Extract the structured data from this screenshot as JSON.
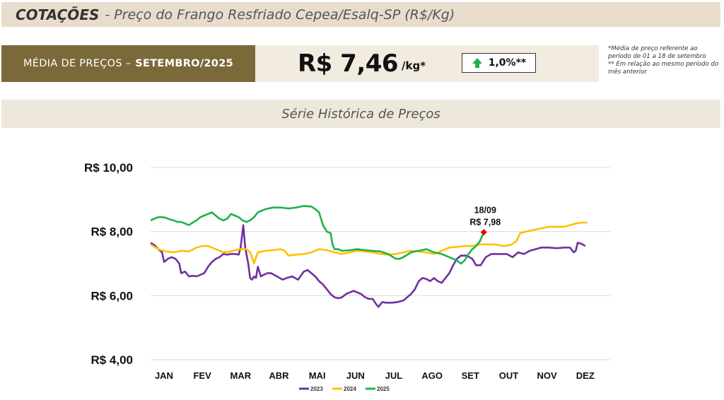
{
  "header": {
    "title_bold": "COTAÇÕES",
    "title_rest": "- Preço do Frango Resfriado Cepea/Esalq-SP (R$/Kg)"
  },
  "summary": {
    "label_prefix": "MÉDIA DE PREÇOS –",
    "label_period": "SETEMBRO/2025",
    "price": "R$ 7,46",
    "unit": "/kg*",
    "variation": "1,0%**",
    "variation_icon": "arrow-up-icon",
    "footnote_1": "*Média de preço referente ao período de 01 a 18 de setembro",
    "footnote_2": "** Em relação ao mesmo período do mês anterior"
  },
  "series_title": "Série Histórica de Preços",
  "colors": {
    "header_bg": "#e8ddcd",
    "label_bg": "#7a6a3a",
    "y2023": "#7030a0",
    "y2024": "#ffc000",
    "y2025": "#1db34a",
    "marker": "#e00000",
    "up_arrow": "#1db34a"
  },
  "chart_data": {
    "type": "line",
    "title": "Série Histórica de Preços",
    "xlabel": "",
    "ylabel": "",
    "categories": [
      "JAN",
      "FEV",
      "MAR",
      "ABR",
      "MAI",
      "JUN",
      "JUL",
      "AGO",
      "SET",
      "OUT",
      "NOV",
      "DEZ"
    ],
    "yticks": [
      "R$ 4,00",
      "R$ 6,00",
      "R$ 8,00",
      "R$ 10,00"
    ],
    "ylim": [
      4,
      10
    ],
    "xlim": [
      0,
      12
    ],
    "grid": true,
    "legend_position": "bottom",
    "series": [
      {
        "name": "2023",
        "color": "#7030a0",
        "points": [
          [
            0.0,
            7.65
          ],
          [
            0.1,
            7.58
          ],
          [
            0.2,
            7.45
          ],
          [
            0.3,
            7.35
          ],
          [
            0.35,
            7.05
          ],
          [
            0.45,
            7.15
          ],
          [
            0.55,
            7.2
          ],
          [
            0.65,
            7.15
          ],
          [
            0.75,
            7.0
          ],
          [
            0.8,
            6.7
          ],
          [
            0.9,
            6.75
          ],
          [
            1.0,
            6.6
          ],
          [
            1.1,
            6.62
          ],
          [
            1.2,
            6.6
          ],
          [
            1.3,
            6.65
          ],
          [
            1.4,
            6.7
          ],
          [
            1.5,
            6.9
          ],
          [
            1.6,
            7.05
          ],
          [
            1.7,
            7.15
          ],
          [
            1.8,
            7.2
          ],
          [
            1.9,
            7.3
          ],
          [
            2.0,
            7.28
          ],
          [
            2.1,
            7.3
          ],
          [
            2.2,
            7.3
          ],
          [
            2.3,
            7.28
          ],
          [
            2.35,
            7.5
          ],
          [
            2.42,
            8.2
          ],
          [
            2.47,
            7.5
          ],
          [
            2.55,
            7.0
          ],
          [
            2.6,
            6.55
          ],
          [
            2.65,
            6.5
          ],
          [
            2.7,
            6.6
          ],
          [
            2.75,
            6.55
          ],
          [
            2.8,
            6.9
          ],
          [
            2.88,
            6.6
          ],
          [
            2.95,
            6.65
          ],
          [
            3.05,
            6.7
          ],
          [
            3.15,
            6.7
          ],
          [
            3.3,
            6.6
          ],
          [
            3.45,
            6.5
          ],
          [
            3.55,
            6.55
          ],
          [
            3.7,
            6.6
          ],
          [
            3.85,
            6.5
          ],
          [
            4.0,
            6.75
          ],
          [
            4.1,
            6.8
          ],
          [
            4.2,
            6.7
          ],
          [
            4.3,
            6.6
          ],
          [
            4.4,
            6.45
          ],
          [
            4.5,
            6.35
          ],
          [
            4.6,
            6.2
          ],
          [
            4.7,
            6.05
          ],
          [
            4.8,
            5.95
          ],
          [
            4.9,
            5.92
          ],
          [
            5.0,
            5.95
          ],
          [
            5.1,
            6.05
          ],
          [
            5.2,
            6.1
          ],
          [
            5.3,
            6.15
          ],
          [
            5.4,
            6.1
          ],
          [
            5.5,
            6.05
          ],
          [
            5.6,
            5.95
          ],
          [
            5.7,
            5.9
          ],
          [
            5.8,
            5.9
          ],
          [
            5.88,
            5.75
          ],
          [
            5.95,
            5.65
          ],
          [
            6.05,
            5.8
          ],
          [
            6.15,
            5.78
          ],
          [
            6.3,
            5.78
          ],
          [
            6.45,
            5.8
          ],
          [
            6.6,
            5.85
          ],
          [
            6.7,
            5.95
          ],
          [
            6.8,
            6.05
          ],
          [
            6.9,
            6.2
          ],
          [
            7.0,
            6.45
          ],
          [
            7.1,
            6.55
          ],
          [
            7.2,
            6.52
          ],
          [
            7.3,
            6.45
          ],
          [
            7.4,
            6.55
          ],
          [
            7.5,
            6.45
          ],
          [
            7.6,
            6.4
          ],
          [
            7.7,
            6.55
          ],
          [
            7.8,
            6.7
          ],
          [
            7.9,
            6.95
          ],
          [
            8.0,
            7.15
          ],
          [
            8.1,
            7.25
          ],
          [
            8.25,
            7.25
          ],
          [
            8.4,
            7.15
          ],
          [
            8.5,
            6.95
          ],
          [
            8.62,
            6.95
          ],
          [
            8.75,
            7.2
          ],
          [
            8.9,
            7.3
          ],
          [
            9.1,
            7.3
          ],
          [
            9.3,
            7.3
          ],
          [
            9.45,
            7.2
          ],
          [
            9.6,
            7.35
          ],
          [
            9.75,
            7.3
          ],
          [
            9.9,
            7.4
          ],
          [
            10.05,
            7.45
          ],
          [
            10.2,
            7.5
          ],
          [
            10.4,
            7.5
          ],
          [
            10.6,
            7.48
          ],
          [
            10.8,
            7.5
          ],
          [
            10.95,
            7.5
          ],
          [
            11.05,
            7.35
          ],
          [
            11.1,
            7.4
          ],
          [
            11.15,
            7.65
          ],
          [
            11.25,
            7.62
          ],
          [
            11.35,
            7.55
          ]
        ]
      },
      {
        "name": "2024",
        "color": "#ffc000",
        "points": [
          [
            0.0,
            7.6
          ],
          [
            0.2,
            7.45
          ],
          [
            0.4,
            7.38
          ],
          [
            0.6,
            7.35
          ],
          [
            0.8,
            7.4
          ],
          [
            1.0,
            7.38
          ],
          [
            1.2,
            7.5
          ],
          [
            1.35,
            7.55
          ],
          [
            1.5,
            7.55
          ],
          [
            1.7,
            7.45
          ],
          [
            1.9,
            7.35
          ],
          [
            2.1,
            7.38
          ],
          [
            2.3,
            7.45
          ],
          [
            2.5,
            7.45
          ],
          [
            2.6,
            7.35
          ],
          [
            2.7,
            7.0
          ],
          [
            2.8,
            7.35
          ],
          [
            3.0,
            7.4
          ],
          [
            3.2,
            7.42
          ],
          [
            3.4,
            7.45
          ],
          [
            3.5,
            7.4
          ],
          [
            3.6,
            7.25
          ],
          [
            3.8,
            7.28
          ],
          [
            4.0,
            7.3
          ],
          [
            4.2,
            7.35
          ],
          [
            4.4,
            7.45
          ],
          [
            4.6,
            7.42
          ],
          [
            4.8,
            7.35
          ],
          [
            5.0,
            7.3
          ],
          [
            5.2,
            7.35
          ],
          [
            5.4,
            7.4
          ],
          [
            5.6,
            7.38
          ],
          [
            5.8,
            7.35
          ],
          [
            6.0,
            7.3
          ],
          [
            6.2,
            7.28
          ],
          [
            6.4,
            7.3
          ],
          [
            6.6,
            7.35
          ],
          [
            6.8,
            7.4
          ],
          [
            7.0,
            7.38
          ],
          [
            7.2,
            7.35
          ],
          [
            7.4,
            7.3
          ],
          [
            7.6,
            7.4
          ],
          [
            7.8,
            7.5
          ],
          [
            8.0,
            7.52
          ],
          [
            8.2,
            7.55
          ],
          [
            8.4,
            7.55
          ],
          [
            8.6,
            7.6
          ],
          [
            8.8,
            7.6
          ],
          [
            9.0,
            7.6
          ],
          [
            9.2,
            7.55
          ],
          [
            9.4,
            7.58
          ],
          [
            9.55,
            7.7
          ],
          [
            9.65,
            7.95
          ],
          [
            9.8,
            8.0
          ],
          [
            10.0,
            8.05
          ],
          [
            10.2,
            8.1
          ],
          [
            10.4,
            8.15
          ],
          [
            10.6,
            8.15
          ],
          [
            10.8,
            8.15
          ],
          [
            10.95,
            8.2
          ],
          [
            11.1,
            8.25
          ],
          [
            11.25,
            8.28
          ],
          [
            11.4,
            8.28
          ]
        ]
      },
      {
        "name": "2025",
        "color": "#1db34a",
        "points": [
          [
            0.0,
            8.35
          ],
          [
            0.1,
            8.4
          ],
          [
            0.2,
            8.45
          ],
          [
            0.3,
            8.45
          ],
          [
            0.4,
            8.43
          ],
          [
            0.5,
            8.38
          ],
          [
            0.6,
            8.35
          ],
          [
            0.7,
            8.3
          ],
          [
            0.8,
            8.3
          ],
          [
            0.9,
            8.25
          ],
          [
            1.0,
            8.2
          ],
          [
            1.1,
            8.28
          ],
          [
            1.2,
            8.35
          ],
          [
            1.3,
            8.45
          ],
          [
            1.4,
            8.5
          ],
          [
            1.5,
            8.55
          ],
          [
            1.6,
            8.6
          ],
          [
            1.7,
            8.5
          ],
          [
            1.8,
            8.4
          ],
          [
            1.9,
            8.35
          ],
          [
            2.0,
            8.4
          ],
          [
            2.1,
            8.55
          ],
          [
            2.2,
            8.5
          ],
          [
            2.3,
            8.45
          ],
          [
            2.4,
            8.35
          ],
          [
            2.5,
            8.3
          ],
          [
            2.6,
            8.35
          ],
          [
            2.7,
            8.45
          ],
          [
            2.8,
            8.6
          ],
          [
            3.0,
            8.7
          ],
          [
            3.2,
            8.75
          ],
          [
            3.4,
            8.75
          ],
          [
            3.6,
            8.72
          ],
          [
            3.8,
            8.75
          ],
          [
            4.0,
            8.8
          ],
          [
            4.2,
            8.78
          ],
          [
            4.3,
            8.7
          ],
          [
            4.4,
            8.6
          ],
          [
            4.5,
            8.2
          ],
          [
            4.6,
            8.0
          ],
          [
            4.7,
            7.95
          ],
          [
            4.75,
            7.6
          ],
          [
            4.8,
            7.45
          ],
          [
            4.9,
            7.45
          ],
          [
            5.0,
            7.4
          ],
          [
            5.2,
            7.42
          ],
          [
            5.4,
            7.45
          ],
          [
            5.6,
            7.42
          ],
          [
            5.8,
            7.4
          ],
          [
            6.0,
            7.38
          ],
          [
            6.2,
            7.3
          ],
          [
            6.4,
            7.15
          ],
          [
            6.5,
            7.15
          ],
          [
            6.6,
            7.2
          ],
          [
            6.8,
            7.35
          ],
          [
            7.0,
            7.4
          ],
          [
            7.2,
            7.45
          ],
          [
            7.4,
            7.35
          ],
          [
            7.6,
            7.3
          ],
          [
            7.8,
            7.2
          ],
          [
            8.0,
            7.1
          ],
          [
            8.1,
            7.0
          ],
          [
            8.2,
            7.1
          ],
          [
            8.3,
            7.3
          ],
          [
            8.4,
            7.45
          ],
          [
            8.5,
            7.55
          ],
          [
            8.6,
            7.7
          ],
          [
            8.7,
            7.98
          ]
        ]
      }
    ],
    "annotation": {
      "series": "2025",
      "x": 8.7,
      "y": 7.98,
      "date_label": "18/09",
      "value_label": "R$ 7,98"
    }
  }
}
